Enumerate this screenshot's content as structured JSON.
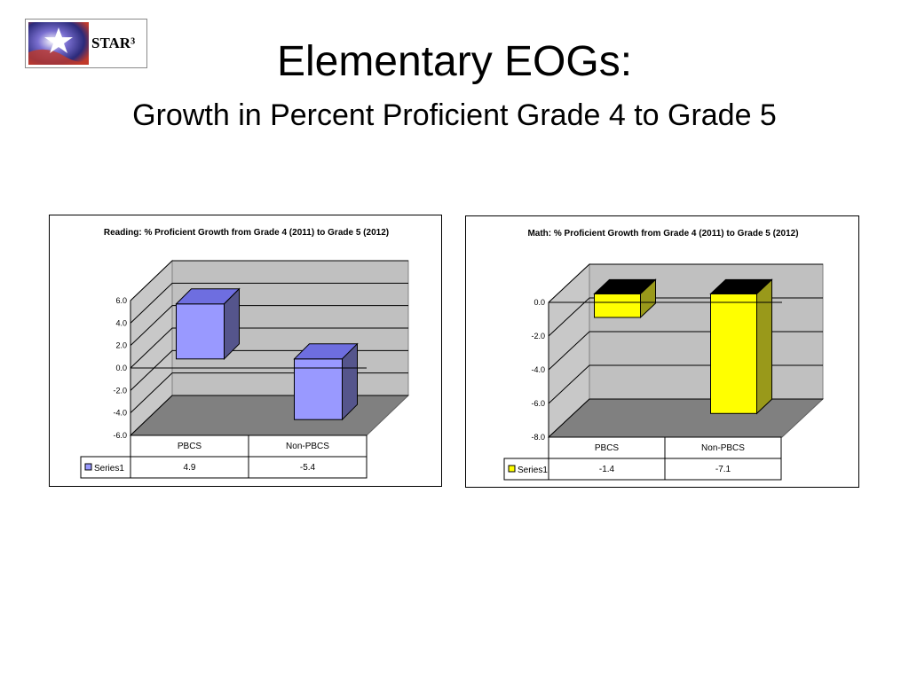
{
  "slide": {
    "title": "Elementary EOGs:",
    "subtitle": "Growth in Percent Proficient Grade 4 to Grade 5",
    "logo_text": "STAR³"
  },
  "chart_data": [
    {
      "type": "bar",
      "title": "Reading: % Proficient Growth from Grade 4 (2011) to Grade 5 (2012)",
      "categories": [
        "PBCS",
        "Non-PBCS"
      ],
      "series": [
        {
          "name": "Series1",
          "values": [
            4.9,
            -5.4
          ]
        }
      ],
      "data_table_values": [
        "4.9",
        "-5.4"
      ],
      "ylim": [
        -6.0,
        6.0
      ],
      "yticks": [
        "6.0",
        "4.0",
        "2.0",
        "0.0",
        "-2.0",
        "-4.0",
        "-6.0"
      ],
      "grid": true,
      "style": "3d-column",
      "colors": {
        "front": "#9999ff",
        "top": "#6e6ee0",
        "side": "#55558c",
        "legend_key": "#9999ff"
      }
    },
    {
      "type": "bar",
      "title": "Math: % Proficient Growth from Grade 4 (2011) to Grade 5 (2012)",
      "categories": [
        "PBCS",
        "Non-PBCS"
      ],
      "series": [
        {
          "name": "Series1",
          "values": [
            -1.4,
            -7.1
          ]
        }
      ],
      "data_table_values": [
        "-1.4",
        "-7.1"
      ],
      "ylim": [
        -8.0,
        0.0
      ],
      "yticks": [
        "0.0",
        "-2.0",
        "-4.0",
        "-6.0",
        "-8.0"
      ],
      "grid": true,
      "style": "3d-column",
      "colors": {
        "front": "#ffff00",
        "top": "#000000",
        "side": "#99991a",
        "legend_key": "#ffff00"
      }
    }
  ]
}
